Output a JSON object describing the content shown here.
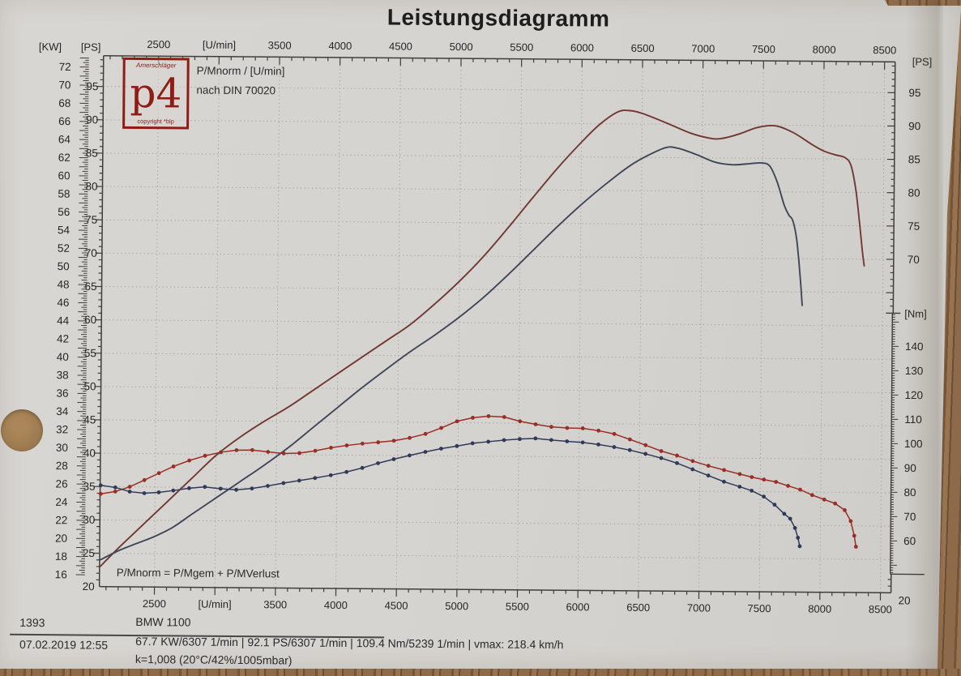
{
  "title": "Leistungsdiagramm",
  "legend": {
    "line1": "P/Mnorm / [U/min]",
    "line2": "nach DIN 70020"
  },
  "logo": {
    "top": "Amerschläger",
    "main": "p4",
    "bottom": "copyright *blp"
  },
  "annotation": "P/Mnorm = P/Mgem + P/MVerlust",
  "footer": {
    "number": "1393",
    "datetime": "07.02.2019  12:55",
    "vehicle": "BMW 1100",
    "results": "67.7 KW/6307 1/min  |  92.1 PS/6307 1/min  |  109.4 Nm/5239 1/min | vmax: 218.4 km/h",
    "correction": "k=1,008 (20°C/42%/1005mbar)"
  },
  "colors": {
    "paper": "#d6d4d0",
    "wood": "#8a6748",
    "axis": "#403e3b",
    "grid": "#a7a5a0",
    "text": "#262524",
    "logo_red": "#8e1d15",
    "power_norm": "#703831",
    "power_meas": "#3e4658",
    "torque_norm": "#9a2d24",
    "torque_meas": "#2f3a58"
  },
  "chart_data": {
    "type": "line",
    "title": "Leistungsdiagramm",
    "grid": true,
    "axes": {
      "rpm": {
        "label": "[U/min]",
        "min": 2045,
        "max": 8580,
        "minor_step": 100,
        "major_step": 500,
        "majors": [
          {
            "v": 2500,
            "t": "2500"
          },
          {
            "v": 3000,
            "t": "[U/min]"
          },
          {
            "v": 3500,
            "t": "3500"
          },
          {
            "v": 4000,
            "t": "4000"
          },
          {
            "v": 4500,
            "t": "4500"
          },
          {
            "v": 5000,
            "t": "5000"
          },
          {
            "v": 5500,
            "t": "5500"
          },
          {
            "v": 6000,
            "t": "6000"
          },
          {
            "v": 6500,
            "t": "6500"
          },
          {
            "v": 7000,
            "t": "7000"
          },
          {
            "v": 7500,
            "t": "7500"
          },
          {
            "v": 8000,
            "t": "8000"
          },
          {
            "v": 8500,
            "t": "8500"
          }
        ]
      },
      "ps_left": {
        "label": "[PS]",
        "min": 20,
        "max": 99.5,
        "labels": [
          95,
          90,
          85,
          80,
          75,
          70,
          65,
          60,
          55,
          50,
          45,
          40,
          35,
          30,
          25,
          20
        ]
      },
      "kw_left": {
        "label": "[KW]",
        "factor_ps_per_kw": 1.35962,
        "labels": [
          72,
          70,
          68,
          66,
          64,
          62,
          60,
          58,
          56,
          54,
          52,
          50,
          48,
          46,
          44,
          42,
          40,
          38,
          36,
          34,
          32,
          30,
          28,
          26,
          24,
          22,
          20,
          18,
          16
        ]
      },
      "ps_right": {
        "label": "[PS]",
        "labels": [
          95,
          90,
          85,
          80,
          75,
          70
        ],
        "bottom_label": "20"
      },
      "nm_right": {
        "label": "[Nm]",
        "labels": [
          140,
          130,
          120,
          110,
          100,
          90,
          80,
          70,
          60
        ]
      }
    },
    "series": [
      {
        "name": "Pnorm",
        "unit": "PS",
        "style": "solid",
        "color": "#703831",
        "points": [
          [
            2050,
            23.0
          ],
          [
            2200,
            25.8
          ],
          [
            2400,
            29.3
          ],
          [
            2600,
            32.8
          ],
          [
            2800,
            36.3
          ],
          [
            3000,
            39.8
          ],
          [
            3200,
            42.6
          ],
          [
            3400,
            45.0
          ],
          [
            3600,
            47.2
          ],
          [
            3800,
            49.7
          ],
          [
            4000,
            52.2
          ],
          [
            4200,
            54.7
          ],
          [
            4400,
            57.2
          ],
          [
            4600,
            59.7
          ],
          [
            4800,
            62.8
          ],
          [
            5000,
            66.2
          ],
          [
            5200,
            70.0
          ],
          [
            5400,
            74.3
          ],
          [
            5600,
            78.8
          ],
          [
            5800,
            83.2
          ],
          [
            6000,
            87.2
          ],
          [
            6150,
            89.9
          ],
          [
            6300,
            91.8
          ],
          [
            6400,
            92.0
          ],
          [
            6500,
            91.6
          ],
          [
            6700,
            90.2
          ],
          [
            6900,
            88.7
          ],
          [
            7050,
            88.0
          ],
          [
            7150,
            87.9
          ],
          [
            7300,
            88.6
          ],
          [
            7450,
            89.6
          ],
          [
            7600,
            89.9
          ],
          [
            7750,
            88.9
          ],
          [
            7900,
            87.2
          ],
          [
            8000,
            86.2
          ],
          [
            8100,
            85.6
          ],
          [
            8180,
            85.2
          ],
          [
            8230,
            84.0
          ],
          [
            8270,
            80.5
          ],
          [
            8300,
            76.0
          ],
          [
            8330,
            71.0
          ],
          [
            8345,
            69.0
          ]
        ]
      },
      {
        "name": "Pgem",
        "unit": "PS",
        "style": "solid",
        "color": "#3e4658",
        "points": [
          [
            2050,
            24.0
          ],
          [
            2200,
            25.4
          ],
          [
            2350,
            26.5
          ],
          [
            2500,
            27.6
          ],
          [
            2650,
            29.0
          ],
          [
            2800,
            30.9
          ],
          [
            3000,
            33.4
          ],
          [
            3200,
            35.9
          ],
          [
            3400,
            38.4
          ],
          [
            3600,
            41.1
          ],
          [
            3800,
            44.1
          ],
          [
            4000,
            47.1
          ],
          [
            4200,
            50.1
          ],
          [
            4400,
            52.9
          ],
          [
            4600,
            55.6
          ],
          [
            4800,
            58.1
          ],
          [
            5000,
            60.8
          ],
          [
            5200,
            63.8
          ],
          [
            5400,
            67.2
          ],
          [
            5600,
            70.8
          ],
          [
            5800,
            74.4
          ],
          [
            6000,
            77.8
          ],
          [
            6200,
            80.9
          ],
          [
            6400,
            83.7
          ],
          [
            6550,
            85.3
          ],
          [
            6700,
            86.5
          ],
          [
            6800,
            86.4
          ],
          [
            6950,
            85.5
          ],
          [
            7100,
            84.4
          ],
          [
            7250,
            84.0
          ],
          [
            7400,
            84.2
          ],
          [
            7500,
            84.3
          ],
          [
            7560,
            83.8
          ],
          [
            7620,
            81.5
          ],
          [
            7680,
            78.0
          ],
          [
            7720,
            76.5
          ],
          [
            7750,
            75.8
          ],
          [
            7780,
            73.5
          ],
          [
            7800,
            70.5
          ],
          [
            7820,
            66.5
          ],
          [
            7835,
            63.0
          ]
        ]
      },
      {
        "name": "Mnorm",
        "unit": "Nm",
        "style": "dotted",
        "color": "#9a2d24",
        "points": [
          [
            2050,
            76.8
          ],
          [
            2170,
            77.8
          ],
          [
            2290,
            79.8
          ],
          [
            2410,
            82.6
          ],
          [
            2530,
            85.5
          ],
          [
            2650,
            88.3
          ],
          [
            2780,
            90.8
          ],
          [
            2910,
            92.8
          ],
          [
            3040,
            94.3
          ],
          [
            3170,
            95.2
          ],
          [
            3300,
            95.3
          ],
          [
            3430,
            94.6
          ],
          [
            3560,
            94.0
          ],
          [
            3690,
            94.2
          ],
          [
            3820,
            95.2
          ],
          [
            3950,
            96.5
          ],
          [
            4080,
            97.5
          ],
          [
            4210,
            98.3
          ],
          [
            4340,
            98.9
          ],
          [
            4470,
            99.6
          ],
          [
            4600,
            100.8
          ],
          [
            4730,
            102.5
          ],
          [
            4860,
            105.0
          ],
          [
            4990,
            107.8
          ],
          [
            5120,
            109.3
          ],
          [
            5250,
            110.0
          ],
          [
            5380,
            109.7
          ],
          [
            5510,
            108.0
          ],
          [
            5640,
            106.8
          ],
          [
            5770,
            105.8
          ],
          [
            5900,
            105.4
          ],
          [
            6030,
            105.3
          ],
          [
            6160,
            104.4
          ],
          [
            6290,
            103.1
          ],
          [
            6420,
            100.9
          ],
          [
            6550,
            98.6
          ],
          [
            6680,
            96.2
          ],
          [
            6810,
            94.4
          ],
          [
            6940,
            92.2
          ],
          [
            7070,
            90.3
          ],
          [
            7200,
            88.6
          ],
          [
            7330,
            87.0
          ],
          [
            7430,
            85.8
          ],
          [
            7530,
            84.8
          ],
          [
            7630,
            83.9
          ],
          [
            7730,
            82.3
          ],
          [
            7830,
            80.8
          ],
          [
            7930,
            78.6
          ],
          [
            8030,
            76.8
          ],
          [
            8120,
            75.2
          ],
          [
            8200,
            72.5
          ],
          [
            8250,
            68.0
          ],
          [
            8280,
            62.0
          ],
          [
            8295,
            57.5
          ]
        ]
      },
      {
        "name": "Mgem",
        "unit": "Nm",
        "style": "dotted",
        "color": "#2f3a58",
        "points": [
          [
            2050,
            80.3
          ],
          [
            2170,
            79.5
          ],
          [
            2290,
            77.8
          ],
          [
            2410,
            77.2
          ],
          [
            2530,
            77.6
          ],
          [
            2650,
            78.4
          ],
          [
            2780,
            79.4
          ],
          [
            2910,
            80.0
          ],
          [
            3040,
            79.3
          ],
          [
            3170,
            78.9
          ],
          [
            3300,
            79.5
          ],
          [
            3430,
            80.6
          ],
          [
            3560,
            81.8
          ],
          [
            3690,
            82.9
          ],
          [
            3820,
            84.0
          ],
          [
            3950,
            85.2
          ],
          [
            4080,
            86.6
          ],
          [
            4210,
            88.3
          ],
          [
            4340,
            90.3
          ],
          [
            4470,
            92.0
          ],
          [
            4600,
            93.6
          ],
          [
            4730,
            95.1
          ],
          [
            4860,
            96.5
          ],
          [
            4990,
            97.6
          ],
          [
            5120,
            98.8
          ],
          [
            5250,
            99.5
          ],
          [
            5380,
            100.2
          ],
          [
            5510,
            100.7
          ],
          [
            5640,
            101.0
          ],
          [
            5770,
            100.4
          ],
          [
            5900,
            99.9
          ],
          [
            6030,
            99.5
          ],
          [
            6160,
            98.7
          ],
          [
            6290,
            97.7
          ],
          [
            6420,
            96.5
          ],
          [
            6550,
            95.0
          ],
          [
            6680,
            93.3
          ],
          [
            6810,
            91.3
          ],
          [
            6940,
            88.8
          ],
          [
            7070,
            86.3
          ],
          [
            7200,
            83.8
          ],
          [
            7330,
            81.8
          ],
          [
            7430,
            80.2
          ],
          [
            7530,
            77.8
          ],
          [
            7620,
            74.5
          ],
          [
            7700,
            70.8
          ],
          [
            7750,
            68.8
          ],
          [
            7790,
            65.0
          ],
          [
            7815,
            61.0
          ],
          [
            7830,
            57.5
          ]
        ]
      }
    ]
  }
}
